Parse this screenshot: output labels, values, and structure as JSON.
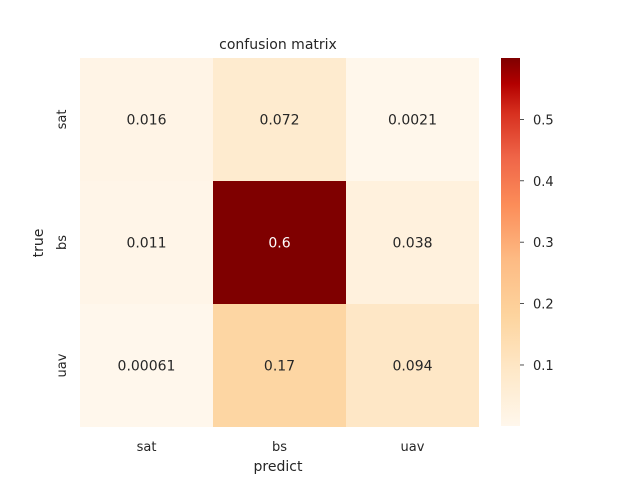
{
  "chart_data": {
    "type": "heatmap",
    "title": "confusion matrix",
    "xlabel": "predict",
    "ylabel": "true",
    "x_categories": [
      "sat",
      "bs",
      "uav"
    ],
    "y_categories": [
      "sat",
      "bs",
      "uav"
    ],
    "values": [
      [
        0.016,
        0.072,
        0.0021
      ],
      [
        0.011,
        0.6,
        0.038
      ],
      [
        0.00061,
        0.17,
        0.094
      ]
    ],
    "colormap": "OrRd",
    "colorbar": {
      "ticks": [
        "0.1",
        "0.2",
        "0.3",
        "0.4",
        "0.5"
      ],
      "range": [
        0.00061,
        0.6
      ]
    },
    "grid": false
  }
}
